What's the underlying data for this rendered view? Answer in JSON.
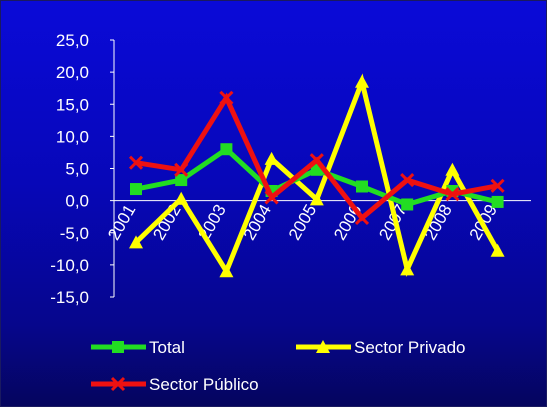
{
  "chart_data": {
    "type": "line",
    "title": "",
    "xlabel": "",
    "ylabel": "",
    "categories": [
      "2001",
      "2002",
      "2003",
      "2004",
      "2005",
      "2006",
      "2007",
      "2008",
      "2009"
    ],
    "ylim": [
      -15,
      25
    ],
    "yticks": [
      25,
      20,
      15,
      10,
      5,
      0,
      -5,
      -10,
      -15
    ],
    "ytick_labels": [
      "25,0",
      "20,0",
      "15,0",
      "10,0",
      "5,0",
      "0,0",
      "-5,0",
      "-10,0",
      "-15,0"
    ],
    "legend_position": "bottom",
    "background_color": "#0808c8",
    "series": [
      {
        "name": "Total",
        "color": "#22dd22",
        "marker": "square",
        "values": [
          1.8,
          3.2,
          8.0,
          1.5,
          4.8,
          2.2,
          -0.6,
          1.5,
          -0.2
        ]
      },
      {
        "name": "Sector Privado",
        "color": "#ffff00",
        "marker": "triangle",
        "values": [
          -6.5,
          0.3,
          -11.0,
          6.5,
          0.2,
          18.5,
          -10.7,
          4.8,
          -7.8
        ]
      },
      {
        "name": "Sector Público",
        "color": "#ee1111",
        "marker": "x",
        "values": [
          5.9,
          4.8,
          16.0,
          0.5,
          6.3,
          -2.7,
          3.2,
          1.0,
          2.3
        ]
      }
    ]
  }
}
